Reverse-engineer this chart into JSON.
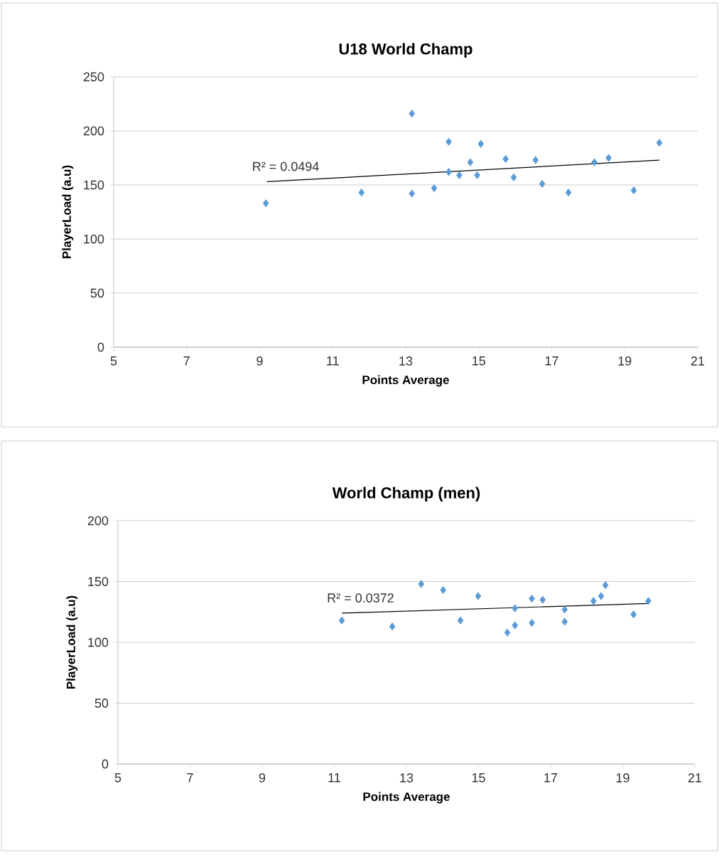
{
  "chart_data": [
    {
      "type": "scatter",
      "title": "U18 World Champ",
      "xlabel": "Points Average",
      "ylabel": "PlayerLoad (a.u)",
      "xlim": [
        5,
        21
      ],
      "xticks": [
        5,
        7,
        9,
        11,
        13,
        15,
        17,
        19,
        21
      ],
      "ylim": [
        0,
        250
      ],
      "yticks": [
        0,
        50,
        100,
        150,
        200,
        250
      ],
      "grid": "y",
      "marker": "diamond",
      "annotations": [
        "R² = 0.0494"
      ],
      "series": [
        {
          "color": "#5b9bd5",
          "x": [
            9.17,
            11.79,
            13.17,
            13.17,
            13.78,
            14.18,
            14.18,
            14.47,
            14.77,
            14.96,
            15.06,
            15.74,
            15.96,
            16.56,
            16.74,
            17.46,
            18.17,
            18.56,
            19.25,
            19.95
          ],
          "values": [
            133,
            143,
            216,
            142,
            147,
            190,
            162,
            159,
            171,
            159,
            188,
            174,
            157,
            173,
            151,
            143,
            171,
            175,
            145,
            189
          ]
        },
        {
          "type": "line",
          "marker": "none",
          "color": "#000000",
          "x": [
            9.2,
            19.95
          ],
          "values": [
            153,
            173
          ]
        }
      ]
    },
    {
      "type": "scatter",
      "title": "World Champ (men)",
      "xlabel": "Points Average",
      "ylabel": "PlayerLoad (a.u)",
      "xlim": [
        5,
        21
      ],
      "xticks": [
        5,
        7,
        9,
        11,
        13,
        15,
        17,
        19,
        21
      ],
      "ylim": [
        0,
        200
      ],
      "yticks": [
        0,
        50,
        100,
        150,
        200
      ],
      "grid": "y",
      "marker": "diamond",
      "annotations": [
        "R² = 0.0372"
      ],
      "series": [
        {
          "color": "#5b9bd5",
          "x": [
            11.21,
            12.61,
            13.41,
            14.02,
            14.5,
            14.99,
            15.8,
            16.01,
            16.01,
            16.48,
            16.48,
            16.78,
            17.39,
            17.39,
            18.19,
            18.4,
            18.52,
            19.3,
            19.71
          ],
          "values": [
            118,
            113,
            148,
            143,
            118,
            138,
            108,
            128,
            114,
            136,
            116,
            135,
            127,
            117,
            134,
            138,
            147,
            123,
            134
          ]
        },
        {
          "type": "line",
          "marker": "none",
          "color": "#000000",
          "x": [
            11.21,
            19.71
          ],
          "values": [
            124,
            132
          ]
        }
      ]
    }
  ]
}
